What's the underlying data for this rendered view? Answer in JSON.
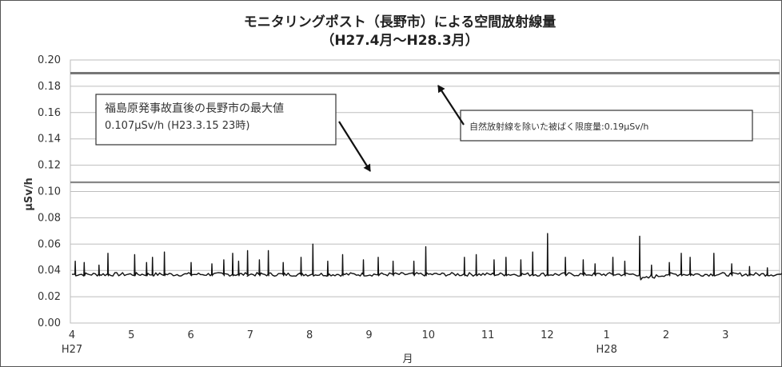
{
  "chart_data": {
    "type": "line",
    "title": "モニタリングポスト（長野市）による空間放射線量",
    "subtitle": "（H27.4月〜H28.3月）",
    "ylabel": "µSv/h",
    "xlabel": "月",
    "ylim": [
      0,
      0.2
    ],
    "yticks": [
      "0.00",
      "0.02",
      "0.04",
      "0.06",
      "0.08",
      "0.10",
      "0.12",
      "0.14",
      "0.16",
      "0.18",
      "0.20"
    ],
    "xticks": [
      "4",
      "5",
      "6",
      "7",
      "8",
      "9",
      "10",
      "11",
      "12",
      "1",
      "2",
      "3"
    ],
    "year_labels": [
      {
        "at": "4",
        "text": "H27"
      },
      {
        "at": "1",
        "text": "H28"
      }
    ],
    "grid": true,
    "reference_lines": [
      {
        "name": "自然放射線を除いた被ばく限度量",
        "value": 0.19,
        "color": "#777777"
      },
      {
        "name": "福島原発事故直後の長野市の最大値",
        "value": 0.107,
        "color": "#888888"
      }
    ],
    "series": [
      {
        "color": "#111111",
        "baseline": 0.037,
        "spikes": [
          {
            "month": 4.05,
            "value": 0.047
          },
          {
            "month": 4.2,
            "value": 0.046
          },
          {
            "month": 4.45,
            "value": 0.044
          },
          {
            "month": 4.6,
            "value": 0.053
          },
          {
            "month": 5.05,
            "value": 0.052
          },
          {
            "month": 5.25,
            "value": 0.046
          },
          {
            "month": 5.35,
            "value": 0.05
          },
          {
            "month": 5.55,
            "value": 0.054
          },
          {
            "month": 6.0,
            "value": 0.046
          },
          {
            "month": 6.35,
            "value": 0.045
          },
          {
            "month": 6.55,
            "value": 0.048
          },
          {
            "month": 6.7,
            "value": 0.053
          },
          {
            "month": 6.8,
            "value": 0.047
          },
          {
            "month": 6.95,
            "value": 0.055
          },
          {
            "month": 7.15,
            "value": 0.048
          },
          {
            "month": 7.3,
            "value": 0.055
          },
          {
            "month": 7.55,
            "value": 0.046
          },
          {
            "month": 7.85,
            "value": 0.05
          },
          {
            "month": 8.05,
            "value": 0.06
          },
          {
            "month": 8.3,
            "value": 0.047
          },
          {
            "month": 8.55,
            "value": 0.052
          },
          {
            "month": 8.9,
            "value": 0.048
          },
          {
            "month": 9.15,
            "value": 0.05
          },
          {
            "month": 9.4,
            "value": 0.047
          },
          {
            "month": 9.75,
            "value": 0.047
          },
          {
            "month": 9.95,
            "value": 0.058
          },
          {
            "month": 10.6,
            "value": 0.05
          },
          {
            "month": 10.8,
            "value": 0.052
          },
          {
            "month": 11.1,
            "value": 0.048
          },
          {
            "month": 11.3,
            "value": 0.05
          },
          {
            "month": 11.55,
            "value": 0.048
          },
          {
            "month": 11.75,
            "value": 0.054
          },
          {
            "month": 12.0,
            "value": 0.068
          },
          {
            "month": 12.3,
            "value": 0.05
          },
          {
            "month": 12.6,
            "value": 0.048
          },
          {
            "month": 12.8,
            "value": 0.045
          },
          {
            "month": 13.1,
            "value": 0.05
          },
          {
            "month": 13.3,
            "value": 0.047
          },
          {
            "month": 13.55,
            "value": 0.066
          },
          {
            "month": 13.75,
            "value": 0.044
          },
          {
            "month": 14.05,
            "value": 0.046
          },
          {
            "month": 14.25,
            "value": 0.053
          },
          {
            "month": 14.4,
            "value": 0.05
          },
          {
            "month": 14.8,
            "value": 0.053
          },
          {
            "month": 15.1,
            "value": 0.045
          },
          {
            "month": 15.4,
            "value": 0.043
          },
          {
            "month": 15.7,
            "value": 0.042
          }
        ],
        "dip": {
          "from": 13.55,
          "to": 14.0,
          "value": 0.033
        }
      }
    ],
    "annotations": [
      {
        "lines": [
          "福島原発事故直後の長野市の最大値",
          "0.107µSv/h (H23.3.15 23時)"
        ]
      },
      {
        "lines": [
          "自然放射線を除いた被ばく限度量:0.19µSv/h"
        ]
      }
    ]
  }
}
